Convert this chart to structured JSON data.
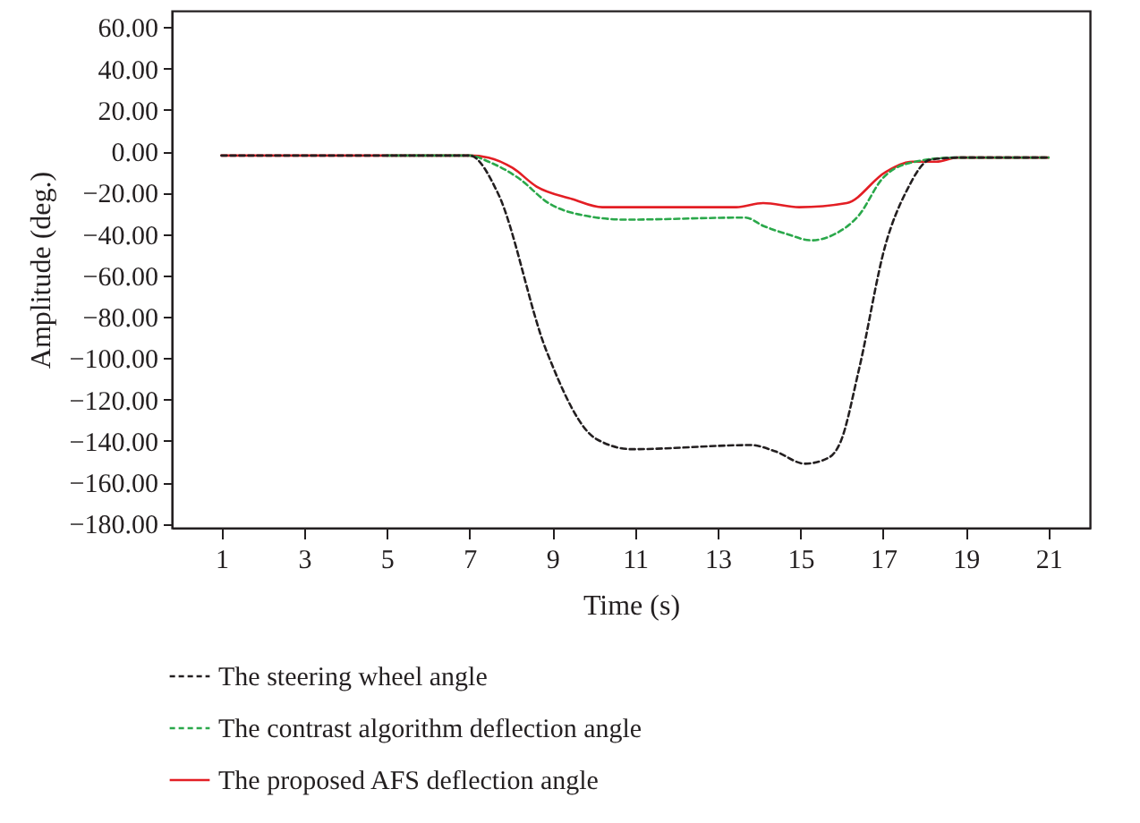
{
  "chart_data": {
    "type": "line",
    "xlabel": "Time (s)",
    "ylabel": "Amplitude (deg.)",
    "xlim": [
      -0.2,
      22
    ],
    "ylim": [
      -182,
      68
    ],
    "xticks": [
      1,
      3,
      5,
      7,
      9,
      11,
      13,
      15,
      17,
      19,
      21
    ],
    "yticks": [
      {
        "value": 60,
        "label": "60.00"
      },
      {
        "value": 40,
        "label": "40.00"
      },
      {
        "value": 20,
        "label": "20.00"
      },
      {
        "value": 0,
        "label": "0.00"
      },
      {
        "value": -20,
        "label": "−20.00"
      },
      {
        "value": -40,
        "label": "−40.00"
      },
      {
        "value": -60,
        "label": "−60.00"
      },
      {
        "value": -80,
        "label": "−80.00"
      },
      {
        "value": -100,
        "label": "−100.00"
      },
      {
        "value": -120,
        "label": "−120.00"
      },
      {
        "value": -140,
        "label": "−140.00"
      },
      {
        "value": -160,
        "label": "−160.00"
      },
      {
        "value": -180,
        "label": "−180.00"
      }
    ],
    "grid": false,
    "legend": "bottom",
    "marker": "none",
    "series": [
      {
        "name": "The steering wheel angle",
        "color": "#231f20",
        "line_style": "dashed",
        "x": [
          1,
          3,
          5,
          7,
          7.68,
          8.85,
          10.06,
          10.93,
          13.81,
          14.39,
          15.11,
          15.69,
          15.98,
          16.41,
          17.06,
          17.57,
          18.14,
          18.86,
          21
        ],
        "values": [
          -2,
          -2,
          -2,
          -2,
          -20,
          -96,
          -139,
          -144,
          -142,
          -145,
          -151,
          -148,
          -140,
          -106,
          -45,
          -19,
          -4,
          -3,
          -3
        ]
      },
      {
        "name": "The contrast algorithm deflection angle",
        "color": "#2aa84a",
        "line_style": "dashed",
        "x": [
          5,
          7,
          7.46,
          8.19,
          8.91,
          9.77,
          10.78,
          13.67,
          14.1,
          14.68,
          15.26,
          15.83,
          16.41,
          16.99,
          17.57,
          18.72,
          21
        ],
        "values": [
          -2,
          -2,
          -5,
          -13,
          -25,
          -31,
          -33,
          -32,
          -36,
          -40,
          -43,
          -40,
          -31,
          -13,
          -6,
          -3,
          -3
        ]
      },
      {
        "name": "The proposed AFS deflection angle",
        "color": "#e31e24",
        "line_style": "solid",
        "x": [
          1,
          3,
          5,
          7,
          7.46,
          8.04,
          8.62,
          9.48,
          10.21,
          13.45,
          14.1,
          14.97,
          16.12,
          17.06,
          17.71,
          18.29,
          18.79,
          21
        ],
        "values": [
          -2,
          -2,
          -2,
          -2,
          -3,
          -8,
          -17,
          -23,
          -27,
          -27,
          -25,
          -27,
          -25,
          -10,
          -5,
          -5,
          -3,
          -3
        ]
      }
    ]
  }
}
